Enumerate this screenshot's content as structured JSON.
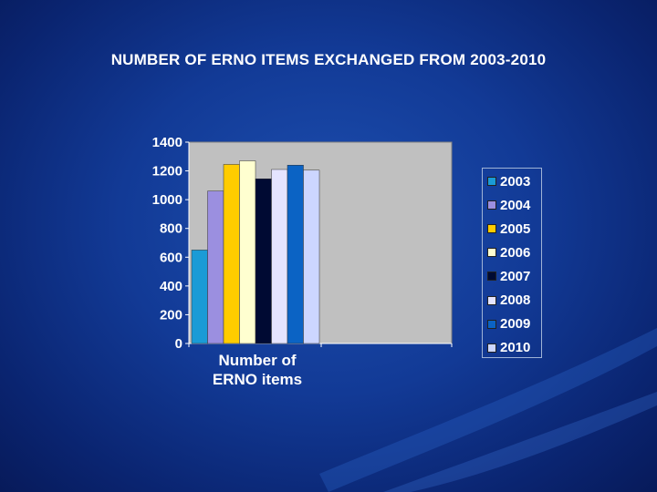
{
  "slide": {
    "title": "NUMBER OF ERNO ITEMS EXCHANGED FROM 2003-2010"
  },
  "chart_data": {
    "type": "bar",
    "title": "NUMBER OF ERNO ITEMS EXCHANGED FROM 2003-2010",
    "categories": [
      "Number of ERNO items"
    ],
    "category_lines": [
      "Number of",
      "ERNO items"
    ],
    "ylim": [
      0,
      1400
    ],
    "yticks": [
      "0",
      "200",
      "400",
      "600",
      "800",
      "1000",
      "1200",
      "1400"
    ],
    "grid": false,
    "legend_position": "right",
    "plot_background": "#c0c0c0",
    "series": [
      {
        "name": "2003",
        "values": [
          650
        ],
        "color": "#1a9bd6"
      },
      {
        "name": "2004",
        "values": [
          1060
        ],
        "color": "#9b8fe0"
      },
      {
        "name": "2005",
        "values": [
          1245
        ],
        "color": "#ffcc00"
      },
      {
        "name": "2006",
        "values": [
          1270
        ],
        "color": "#ffffd0"
      },
      {
        "name": "2007",
        "values": [
          1145
        ],
        "color": "#000a33"
      },
      {
        "name": "2008",
        "values": [
          1210
        ],
        "color": "#e4e4ff"
      },
      {
        "name": "2009",
        "values": [
          1240
        ],
        "color": "#0b63c4"
      },
      {
        "name": "2010",
        "values": [
          1205
        ],
        "color": "#ccd6ff"
      }
    ]
  }
}
